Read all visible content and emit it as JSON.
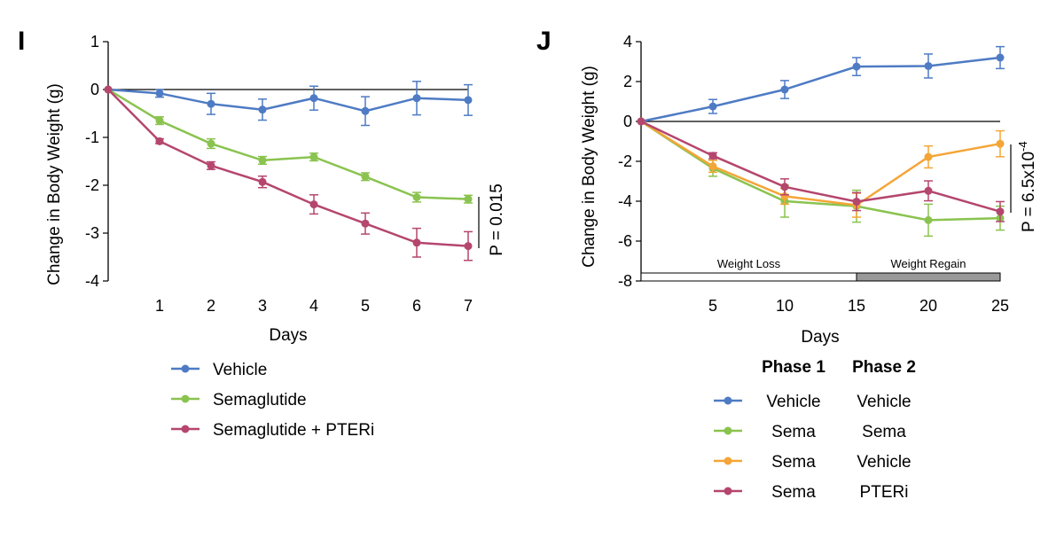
{
  "chart_data": [
    {
      "type": "line",
      "panel": "I",
      "ylabel": "Change in Body Weight (g)",
      "xlabel": "Days",
      "ylim": [
        -4,
        1
      ],
      "xlim": [
        0,
        7
      ],
      "yticks": [
        1,
        0,
        -1,
        -2,
        -3,
        -4
      ],
      "xticks": [
        1,
        2,
        3,
        4,
        5,
        6,
        7
      ],
      "p_value": "P = 0.015",
      "colors": {
        "vehicle": "#4e7bc4",
        "sema": "#8ac34f",
        "pteri": "#b5466e"
      },
      "series": [
        {
          "name": "Vehicle",
          "key": "vehicle",
          "x": [
            0,
            1,
            2,
            3,
            4,
            5,
            6,
            7
          ],
          "y": [
            0,
            -0.08,
            -0.3,
            -0.42,
            -0.18,
            -0.45,
            -0.18,
            -0.22
          ],
          "err": [
            0,
            0.08,
            0.22,
            0.22,
            0.25,
            0.3,
            0.35,
            0.32
          ]
        },
        {
          "name": "Semaglutide",
          "key": "sema",
          "x": [
            0,
            1,
            2,
            3,
            4,
            5,
            6,
            7
          ],
          "y": [
            0,
            -0.65,
            -1.13,
            -1.48,
            -1.41,
            -1.82,
            -2.25,
            -2.29
          ],
          "err": [
            0,
            0.08,
            0.1,
            0.08,
            0.08,
            0.08,
            0.1,
            0.08
          ]
        },
        {
          "name": "Semaglutide + PTERi",
          "key": "pteri",
          "x": [
            0,
            1,
            2,
            3,
            4,
            5,
            6,
            7
          ],
          "y": [
            0,
            -1.08,
            -1.59,
            -1.93,
            -2.4,
            -2.8,
            -3.2,
            -3.27
          ],
          "err": [
            0,
            0.05,
            0.08,
            0.12,
            0.2,
            0.22,
            0.3,
            0.3
          ]
        }
      ],
      "legend": [
        {
          "label": "Vehicle",
          "key": "vehicle"
        },
        {
          "label": "Semaglutide",
          "key": "sema"
        },
        {
          "label": "Semaglutide + PTERi",
          "key": "pteri"
        }
      ]
    },
    {
      "type": "line",
      "panel": "J",
      "ylabel": "Change in Body Weight (g)",
      "xlabel": "Days",
      "ylim": [
        -8,
        4
      ],
      "xlim": [
        0,
        25
      ],
      "yticks": [
        4,
        2,
        0,
        -2,
        -4,
        -6,
        -8
      ],
      "xticks": [
        5,
        10,
        15,
        20,
        25
      ],
      "p_value": "P = 6.5x10",
      "p_exponent": "-4",
      "phase_bar": [
        {
          "label": "Weight Loss",
          "from": 0,
          "to": 15,
          "fill": "#ffffff"
        },
        {
          "label": "Weight Regain",
          "from": 15,
          "to": 25,
          "fill": "#999999"
        }
      ],
      "colors": {
        "vehicle": "#4e7bc4",
        "sema": "#8ac34f",
        "vehicle2": "#f4a537",
        "pteri": "#b5466e"
      },
      "series": [
        {
          "name": "Vehicle / Vehicle",
          "key": "vehicle",
          "x": [
            0,
            5,
            10,
            15,
            20,
            25
          ],
          "y": [
            0,
            0.75,
            1.6,
            2.75,
            2.78,
            3.2
          ],
          "err": [
            0,
            0.35,
            0.45,
            0.45,
            0.6,
            0.55
          ]
        },
        {
          "name": "Sema / Sema",
          "key": "sema",
          "x": [
            0,
            5,
            10,
            15,
            20,
            25
          ],
          "y": [
            0,
            -2.35,
            -4.0,
            -4.25,
            -4.95,
            -4.85
          ],
          "err": [
            0,
            0.4,
            0.8,
            0.8,
            0.8,
            0.6
          ]
        },
        {
          "name": "Sema / Vehicle",
          "key": "vehicle2",
          "x": [
            0,
            5,
            10,
            15,
            20,
            25
          ],
          "y": [
            0,
            -2.25,
            -3.75,
            -4.2,
            -1.78,
            -1.12
          ],
          "err": [
            0,
            0.3,
            0.4,
            0.6,
            0.55,
            0.65
          ]
        },
        {
          "name": "Sema / PTERi",
          "key": "pteri",
          "x": [
            0,
            5,
            10,
            15,
            20,
            25
          ],
          "y": [
            0,
            -1.72,
            -3.28,
            -4.02,
            -3.48,
            -4.52
          ],
          "err": [
            0,
            0.15,
            0.4,
            0.45,
            0.5,
            0.5
          ]
        }
      ],
      "legend_header": {
        "phase1": "Phase 1",
        "phase2": "Phase 2"
      },
      "legend": [
        {
          "phase1": "Vehicle",
          "phase2": "Vehicle",
          "key": "vehicle"
        },
        {
          "phase1": "Sema",
          "phase2": "Sema",
          "key": "sema"
        },
        {
          "phase1": "Sema",
          "phase2": "Vehicle",
          "key": "vehicle2"
        },
        {
          "phase1": "Sema",
          "phase2": "PTERi",
          "key": "pteri"
        }
      ]
    }
  ]
}
